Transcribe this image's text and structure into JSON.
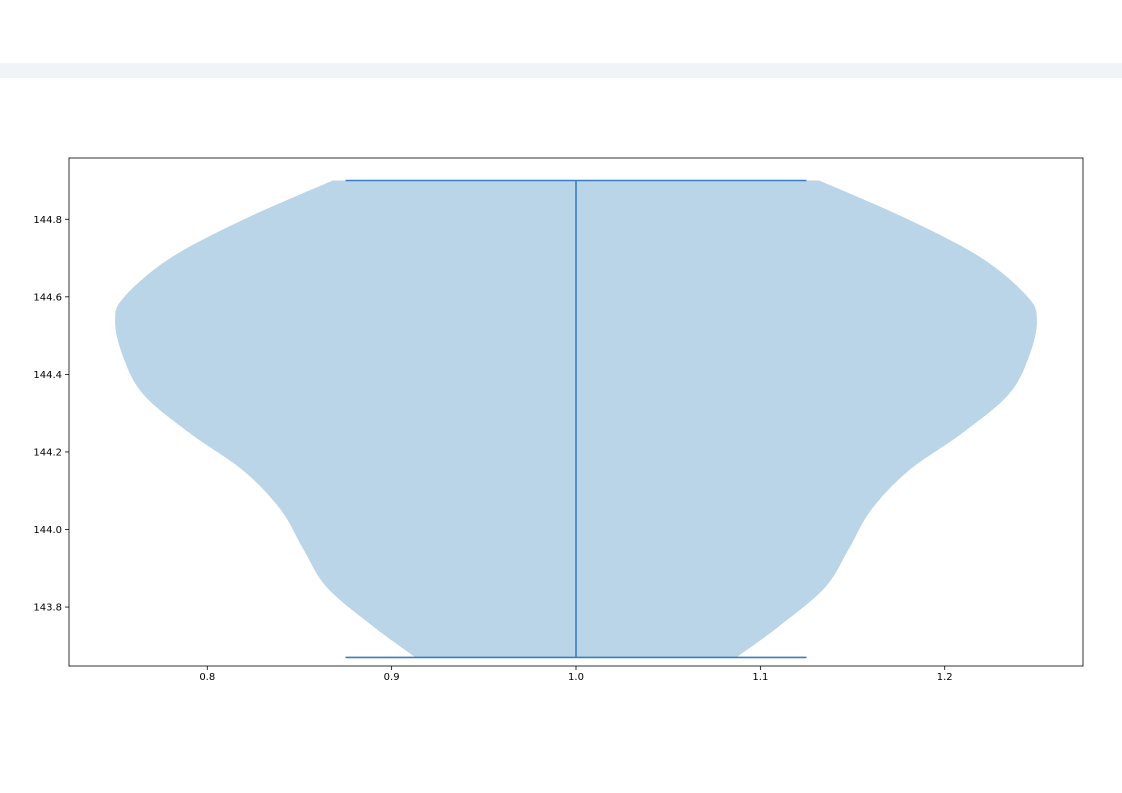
{
  "chart_data": {
    "type": "violin",
    "title": "",
    "xlabel": "",
    "ylabel": "",
    "xlim": [
      0.725,
      1.275
    ],
    "ylim": [
      143.648,
      144.958
    ],
    "x_ticks": [
      0.8,
      0.9,
      1.0,
      1.1,
      1.2
    ],
    "y_ticks": [
      143.8,
      144.0,
      144.2,
      144.4,
      144.6,
      144.8
    ],
    "violin": {
      "position": 1.0,
      "min": 143.67,
      "max": 144.9,
      "extrema_line_halfwidth": 0.125,
      "profile": [
        {
          "y": 143.67,
          "halfwidth": 0.087
        },
        {
          "y": 143.75,
          "halfwidth": 0.11
        },
        {
          "y": 143.85,
          "halfwidth": 0.135
        },
        {
          "y": 143.95,
          "halfwidth": 0.148
        },
        {
          "y": 144.05,
          "halfwidth": 0.16
        },
        {
          "y": 144.15,
          "halfwidth": 0.18
        },
        {
          "y": 144.25,
          "halfwidth": 0.21
        },
        {
          "y": 144.35,
          "halfwidth": 0.235
        },
        {
          "y": 144.45,
          "halfwidth": 0.246
        },
        {
          "y": 144.54,
          "halfwidth": 0.25
        },
        {
          "y": 144.6,
          "halfwidth": 0.245
        },
        {
          "y": 144.7,
          "halfwidth": 0.22
        },
        {
          "y": 144.8,
          "halfwidth": 0.18
        },
        {
          "y": 144.9,
          "halfwidth": 0.132
        }
      ]
    },
    "colors": {
      "body": "#bad5e8",
      "lines": "#3a7ebf",
      "axes": "#000000"
    },
    "grid": false
  }
}
